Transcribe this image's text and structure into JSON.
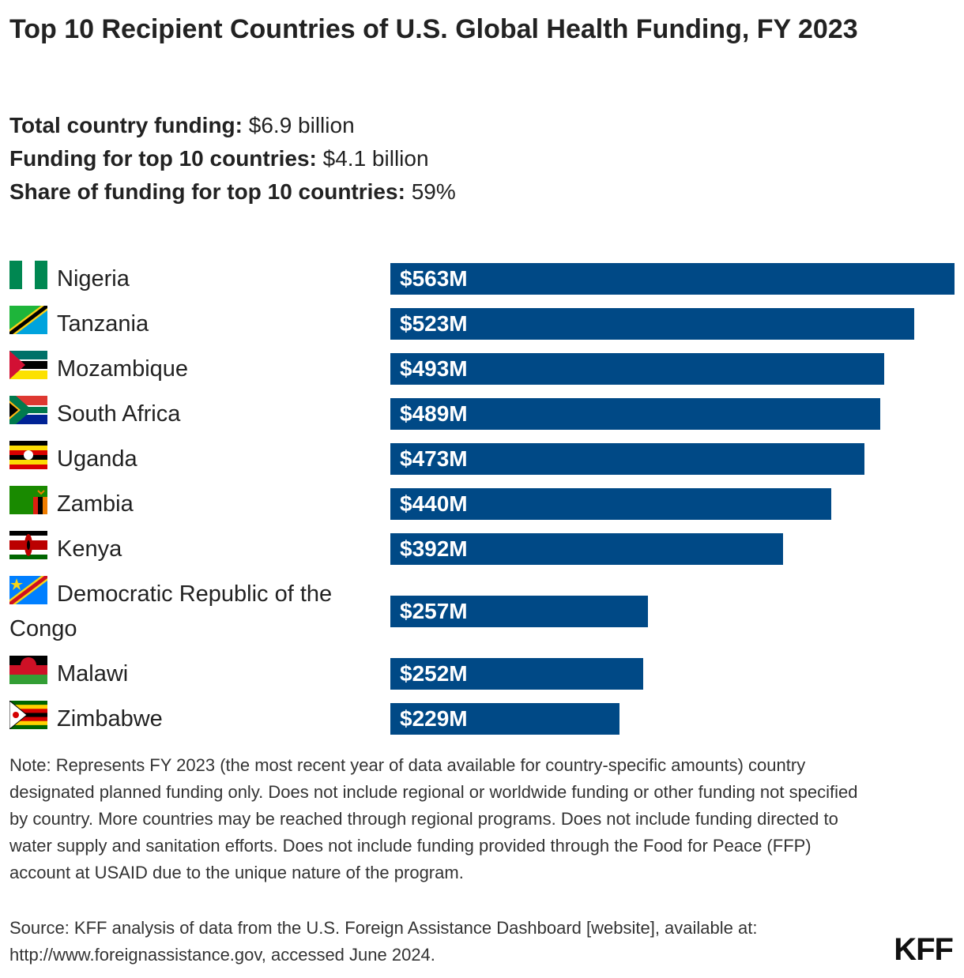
{
  "chart_data": {
    "type": "bar",
    "orientation": "horizontal",
    "title": "Top 10 Recipient Countries of U.S. Global Health Funding, FY 2023",
    "stats": [
      {
        "label": "Total country funding:",
        "value": "$6.9 billion"
      },
      {
        "label": "Funding for top 10 countries:",
        "value": "$4.1 billion"
      },
      {
        "label": "Share of funding for top 10 countries:",
        "value": "59%"
      }
    ],
    "categories": [
      "Nigeria",
      "Tanzania",
      "Mozambique",
      "South Africa",
      "Uganda",
      "Zambia",
      "Kenya",
      "Democratic Republic of the Congo",
      "Malawi",
      "Zimbabwe"
    ],
    "values": [
      563,
      523,
      493,
      489,
      473,
      440,
      392,
      257,
      252,
      229
    ],
    "value_labels": [
      "$563M",
      "$523M",
      "$493M",
      "$489M",
      "$473M",
      "$440M",
      "$392M",
      "$257M",
      "$252M",
      "$229M"
    ],
    "color": "#004986",
    "note": "Note: Represents FY 2023 (the most recent year of data available for country-specific amounts) country designated planned funding only. Does not include regional or worldwide funding or other funding not specified by country. More countries may be reached through regional programs. Does not include funding directed to water supply and sanitation efforts. Does not include funding provided through the Food for Peace (FFP) account at USAID due to the unique nature of the program.",
    "source": "Source: KFF analysis of data from the U.S. Foreign Assistance Dashboard [website], available at: http://www.foreignassistance.gov, accessed June 2024.",
    "logo": "KFF"
  }
}
